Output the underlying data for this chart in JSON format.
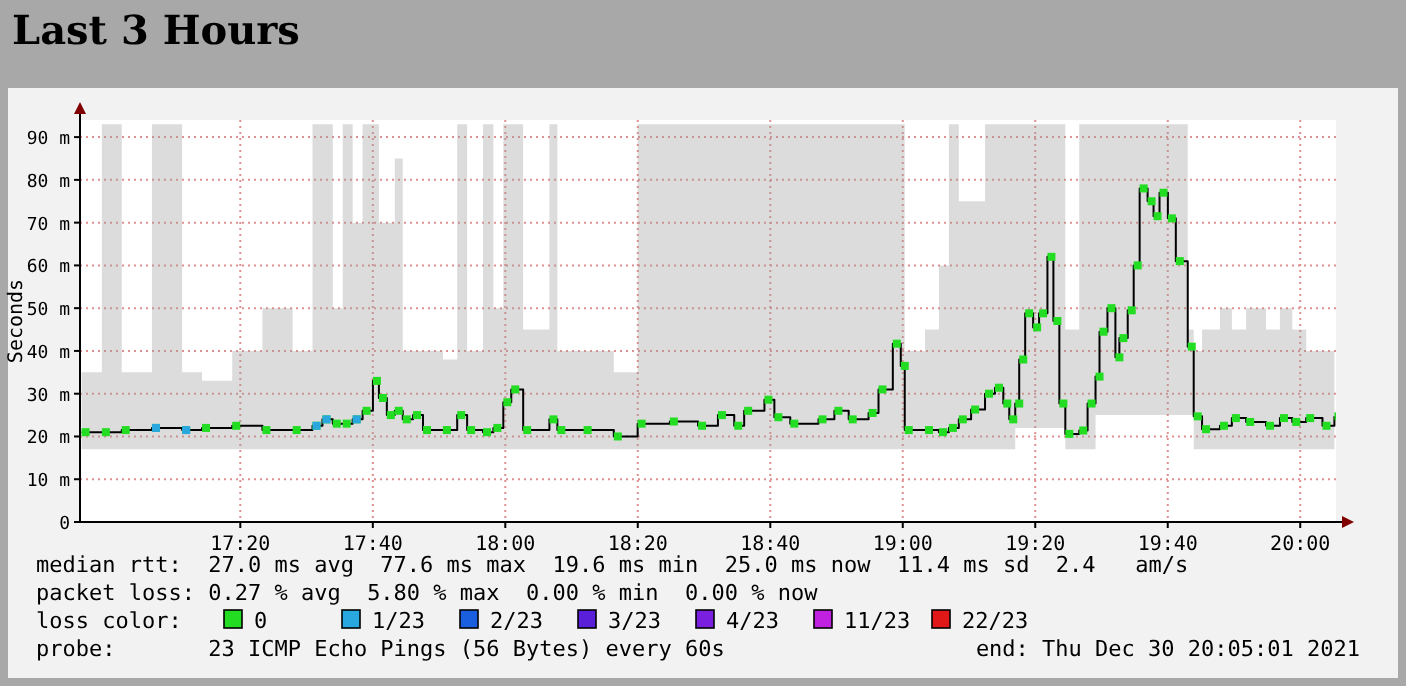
{
  "chart_data": {
    "type": "step",
    "title": "Last 3 Hours",
    "ylabel": "Seconds",
    "legend_title": "loss color:",
    "legend": "bottom",
    "grid": true,
    "marker": "square",
    "line_style": "solid",
    "xlim": [
      16.93,
      20.09
    ],
    "ylim": [
      0,
      94
    ],
    "xticks": [
      {
        "value": 17.3333,
        "label": "17:20"
      },
      {
        "value": 17.6667,
        "label": "17:40"
      },
      {
        "value": 18,
        "label": "18:00"
      },
      {
        "value": 18.3333,
        "label": "18:20"
      },
      {
        "value": 18.6667,
        "label": "18:40"
      },
      {
        "value": 19,
        "label": "19:00"
      },
      {
        "value": 19.3333,
        "label": "19:20"
      },
      {
        "value": 19.6667,
        "label": "19:40"
      },
      {
        "value": 20,
        "label": "20:00"
      }
    ],
    "yticks": [
      0,
      {
        "value": 10,
        "label": "10 m"
      },
      {
        "value": 20,
        "label": "20 m"
      },
      {
        "value": 30,
        "label": "30 m"
      },
      {
        "value": 40,
        "label": "40 m"
      },
      {
        "value": 50,
        "label": "50 m"
      },
      {
        "value": 60,
        "label": "60 m"
      },
      {
        "value": 70,
        "label": "70 m"
      },
      {
        "value": 80,
        "label": "80 m"
      },
      {
        "value": 90,
        "label": "90 m"
      }
    ],
    "x": [
      16.934,
      16.985,
      17.035,
      17.111,
      17.187,
      17.237,
      17.313,
      17.389,
      17.465,
      17.515,
      17.54,
      17.566,
      17.591,
      17.616,
      17.641,
      17.667,
      17.682,
      17.702,
      17.722,
      17.742,
      17.768,
      17.793,
      17.843,
      17.879,
      17.904,
      17.944,
      17.97,
      17.995,
      18.015,
      18.045,
      18.111,
      18.131,
      18.197,
      18.273,
      18.333,
      18.414,
      18.485,
      18.535,
      18.576,
      18.601,
      18.652,
      18.677,
      18.717,
      18.788,
      18.828,
      18.864,
      18.914,
      18.939,
      18.975,
      18.995,
      19.005,
      19.056,
      19.091,
      19.116,
      19.141,
      19.172,
      19.207,
      19.232,
      19.253,
      19.268,
      19.283,
      19.293,
      19.308,
      19.328,
      19.343,
      19.364,
      19.379,
      19.394,
      19.409,
      19.444,
      19.465,
      19.485,
      19.495,
      19.515,
      19.535,
      19.545,
      19.566,
      19.581,
      19.596,
      19.616,
      19.631,
      19.646,
      19.667,
      19.687,
      19.717,
      19.732,
      19.753,
      19.798,
      19.828,
      19.864,
      19.914,
      19.949,
      19.98,
      20.015,
      20.056,
      20.086
    ],
    "series": [
      {
        "name": "0",
        "color": "#22dd22",
        "values": [
          21,
          21,
          21.5,
          22,
          21.5,
          22,
          22.5,
          21.5,
          21.5,
          22.5,
          24,
          23,
          23,
          24,
          26,
          33,
          29,
          25,
          26,
          24,
          25,
          21.5,
          21.5,
          25,
          21.5,
          21,
          22,
          28,
          31,
          21.5,
          24,
          21.5,
          21.5,
          20,
          23,
          23.5,
          22.5,
          25,
          22.5,
          26,
          28.6,
          24.5,
          23,
          24,
          26,
          24,
          25.5,
          31,
          41.7,
          36.5,
          21.5,
          21.5,
          21,
          22,
          24,
          26.3,
          30,
          31.4,
          27.7,
          24,
          27.7,
          38,
          48.8,
          45.5,
          48.8,
          62,
          47,
          27.7,
          20.6,
          21.4,
          27.7,
          34,
          44.5,
          50,
          38.5,
          43,
          49.5,
          60,
          78,
          75,
          71.5,
          77,
          71,
          61,
          41,
          24.7,
          21.7,
          22.5,
          24.3,
          23.4,
          22.5,
          24.3,
          23.4,
          24.3,
          22.5,
          24.7
        ],
        "lower": [
          17,
          17,
          17,
          17,
          17,
          17,
          17,
          17,
          17,
          17,
          17,
          17,
          17,
          17,
          17,
          17,
          17,
          17,
          17,
          17,
          17,
          17,
          17,
          17,
          17,
          17,
          17,
          17,
          17,
          17,
          17,
          17,
          17,
          17,
          17,
          17,
          17,
          17,
          17,
          17,
          17,
          17,
          17,
          17,
          17,
          17,
          17,
          17,
          17,
          17,
          17,
          17,
          17,
          17,
          17,
          17,
          17,
          17,
          17,
          17,
          22,
          22,
          22,
          22,
          22,
          22,
          22,
          22,
          17,
          17,
          17,
          25,
          25,
          25,
          25,
          25,
          25,
          25,
          25,
          25,
          25,
          25,
          25,
          25,
          25,
          17,
          17,
          17,
          17,
          17,
          17,
          17,
          17,
          17,
          17,
          17
        ],
        "upper": [
          35,
          93,
          35,
          93,
          35,
          33,
          40,
          50,
          40,
          93,
          93,
          50,
          93,
          70,
          93,
          93,
          70,
          70,
          85,
          40,
          40,
          40,
          38,
          93,
          40,
          93,
          50,
          93,
          93,
          45,
          93,
          40,
          40,
          35,
          93,
          93,
          93,
          93,
          93,
          93,
          93,
          93,
          93,
          93,
          93,
          93,
          93,
          93,
          93,
          93,
          40,
          45,
          60,
          93,
          75,
          75,
          93,
          93,
          93,
          93,
          93,
          93,
          93,
          93,
          93,
          93,
          93,
          93,
          45,
          93,
          93,
          93,
          93,
          93,
          93,
          93,
          93,
          93,
          93,
          93,
          93,
          93,
          93,
          93,
          45,
          40,
          45,
          50,
          45,
          50,
          45,
          50,
          45,
          40,
          40,
          80
        ]
      },
      {
        "name": "1/23",
        "type": "scatter",
        "color": "#29a8e0",
        "x": [
          17.111,
          17.187,
          17.515,
          17.54,
          17.616
        ],
        "values": [
          22,
          21.5,
          22.5,
          24,
          24
        ]
      },
      {
        "name": "2/23",
        "type": "scatter",
        "color": "#1a5fe0",
        "values": [
          null,
          null,
          null,
          null,
          null,
          null,
          null,
          null,
          null,
          null,
          null,
          null,
          null,
          null,
          null,
          null,
          null,
          null,
          null,
          null,
          null,
          null,
          null,
          null,
          null,
          null,
          null,
          null,
          null,
          null,
          null,
          null,
          null,
          null,
          null,
          null,
          null,
          null,
          null,
          null,
          null,
          null,
          null,
          null,
          null,
          null,
          null,
          null,
          null,
          null,
          null,
          null,
          null,
          null,
          null,
          null,
          null,
          null,
          null,
          null,
          null,
          null,
          null,
          null,
          null,
          null,
          null,
          null,
          null,
          null,
          null,
          null,
          null,
          null,
          null,
          null,
          null,
          null,
          null,
          null,
          null,
          null,
          null,
          null,
          null,
          null,
          null,
          null,
          null,
          null,
          null,
          null,
          null,
          null,
          null,
          null
        ]
      },
      {
        "name": "3/23",
        "type": "scatter",
        "color": "#5a1fd8",
        "values": [
          null,
          null,
          null,
          null,
          null,
          null,
          null,
          null,
          null,
          null,
          null,
          null,
          null,
          null,
          null,
          null,
          null,
          null,
          null,
          null,
          null,
          null,
          null,
          null,
          null,
          null,
          null,
          null,
          null,
          null,
          null,
          null,
          null,
          null,
          null,
          null,
          null,
          null,
          null,
          null,
          null,
          null,
          null,
          null,
          null,
          null,
          null,
          null,
          null,
          null,
          null,
          null,
          null,
          null,
          null,
          null,
          null,
          null,
          null,
          null,
          null,
          null,
          null,
          null,
          null,
          null,
          null,
          null,
          null,
          null,
          null,
          null,
          null,
          null,
          null,
          null,
          null,
          null,
          null,
          null,
          null,
          null,
          null,
          null,
          null,
          null,
          null,
          null,
          null,
          null,
          null,
          null,
          null,
          null,
          null,
          null
        ]
      },
      {
        "name": "4/23",
        "type": "scatter",
        "color": "#7a1fe0",
        "values": [
          null,
          null,
          null,
          null,
          null,
          null,
          null,
          null,
          null,
          null,
          null,
          null,
          null,
          null,
          null,
          null,
          null,
          null,
          null,
          null,
          null,
          null,
          null,
          null,
          null,
          null,
          null,
          null,
          null,
          null,
          null,
          null,
          null,
          null,
          null,
          null,
          null,
          null,
          null,
          null,
          null,
          null,
          null,
          null,
          null,
          null,
          null,
          null,
          null,
          null,
          null,
          null,
          null,
          null,
          null,
          null,
          null,
          null,
          null,
          null,
          null,
          null,
          null,
          null,
          null,
          null,
          null,
          null,
          null,
          null,
          null,
          null,
          null,
          null,
          null,
          null,
          null,
          null,
          null,
          null,
          null,
          null,
          null,
          null,
          null,
          null,
          null,
          null,
          null,
          null,
          null,
          null,
          null,
          null,
          null,
          null
        ]
      },
      {
        "name": "11/23",
        "type": "scatter",
        "color": "#c020e0",
        "values": [
          null,
          null,
          null,
          null,
          null,
          null,
          null,
          null,
          null,
          null,
          null,
          null,
          null,
          null,
          null,
          null,
          null,
          null,
          null,
          null,
          null,
          null,
          null,
          null,
          null,
          null,
          null,
          null,
          null,
          null,
          null,
          null,
          null,
          null,
          null,
          null,
          null,
          null,
          null,
          null,
          null,
          null,
          null,
          null,
          null,
          null,
          null,
          null,
          null,
          null,
          null,
          null,
          null,
          null,
          null,
          null,
          null,
          null,
          null,
          null,
          null,
          null,
          null,
          null,
          null,
          null,
          null,
          null,
          null,
          null,
          null,
          null,
          null,
          null,
          null,
          null,
          null,
          null,
          null,
          null,
          null,
          null,
          null,
          null,
          null,
          null,
          null,
          null,
          null,
          null,
          null,
          null,
          null,
          null,
          null,
          null
        ]
      },
      {
        "name": "22/23",
        "type": "scatter",
        "color": "#e01818",
        "values": [
          null,
          null,
          null,
          null,
          null,
          null,
          null,
          null,
          null,
          null,
          null,
          null,
          null,
          null,
          null,
          null,
          null,
          null,
          null,
          null,
          null,
          null,
          null,
          null,
          null,
          null,
          null,
          null,
          null,
          null,
          null,
          null,
          null,
          null,
          null,
          null,
          null,
          null,
          null,
          null,
          null,
          null,
          null,
          null,
          null,
          null,
          null,
          null,
          null,
          null,
          null,
          null,
          null,
          null,
          null,
          null,
          null,
          null,
          null,
          null,
          null,
          null,
          null,
          null,
          null,
          null,
          null,
          null,
          null,
          null,
          null,
          null,
          null,
          null,
          null,
          null,
          null,
          null,
          null,
          null,
          null,
          null,
          null,
          null,
          null,
          null,
          null,
          null,
          null,
          null,
          null,
          null,
          null,
          null,
          null,
          null
        ]
      }
    ],
    "annotations": [
      "median rtt:  27.0 ms avg  77.6 ms max  19.6 ms min  25.0 ms now  11.4 ms sd  2.4   am/s",
      "packet loss: 0.27 % avg  5.80 % max  0.00 % min  0.00 % now",
      "probe:       23 ICMP Echo Pings (56 Bytes) every 60s",
      "end: Thu Dec 30 20:05:01 2021"
    ]
  }
}
